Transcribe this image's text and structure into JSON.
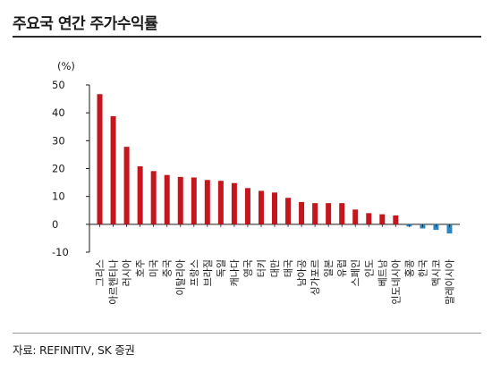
{
  "header": {
    "title": "주요국 연간 주가수익률"
  },
  "source": "자료: REFINITIV, SK 증권",
  "colors": {
    "positive": "#c4161c",
    "negative": "#2e86c1",
    "axis": "#1a1a1a"
  },
  "chart_data": {
    "type": "bar",
    "title": "주요국 연간 주가수익률",
    "unit": "(%)",
    "ylim": [
      -10,
      50
    ],
    "yticks": [
      50,
      40,
      30,
      20,
      10,
      0,
      -10
    ],
    "grid": false,
    "categories": [
      "그리스",
      "아르헨티나",
      "러시아",
      "호주",
      "미국",
      "중국",
      "이탈리아",
      "프랑스",
      "브라질",
      "독일",
      "캐나다",
      "영국",
      "터키",
      "대만",
      "태국",
      "남아공",
      "싱가포르",
      "일본",
      "유럽",
      "스페인",
      "인도",
      "베트남",
      "인도네시아",
      "홍콩",
      "한국",
      "멕시코",
      "말레이시아"
    ],
    "values": [
      46.7,
      38.8,
      27.8,
      20.8,
      19.1,
      17.7,
      17.0,
      16.8,
      15.9,
      15.6,
      14.8,
      13.0,
      12.0,
      11.4,
      9.5,
      8.0,
      7.6,
      7.6,
      7.6,
      5.3,
      4.0,
      3.6,
      3.2,
      -0.8,
      -1.5,
      -2.0,
      -3.3
    ]
  }
}
